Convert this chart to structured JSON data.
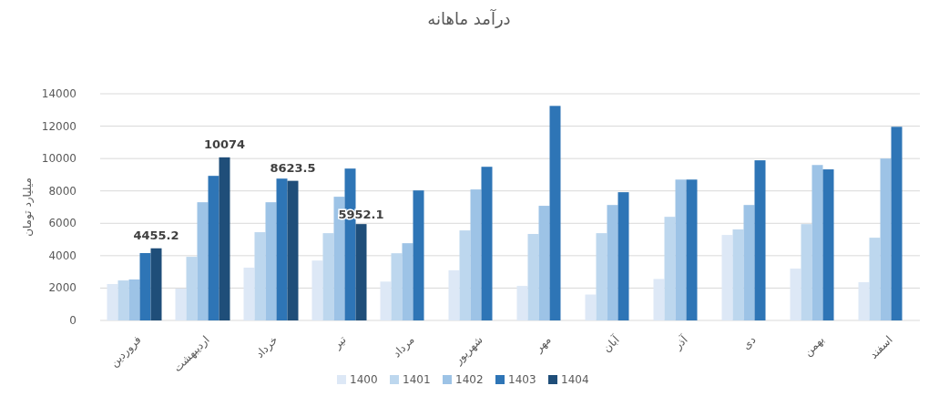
{
  "chart_data": {
    "type": "bar",
    "title": "درآمد ماهانه",
    "ylabel": "میلیارد تومان",
    "categories": [
      "فروردین",
      "اردیبهشت",
      "خرداد",
      "تیر",
      "مرداد",
      "شهریور",
      "مهر",
      "آبان",
      "آذر",
      "دی",
      "بهمن",
      "اسفند"
    ],
    "series": [
      {
        "name": "1400",
        "color": "#dde8f6",
        "values": [
          2250,
          1970,
          3260,
          3700,
          2400,
          3100,
          2130,
          1600,
          2560,
          5280,
          3200,
          2360
        ]
      },
      {
        "name": "1401",
        "color": "#bdd7ee",
        "values": [
          2470,
          3930,
          5450,
          5390,
          4150,
          5560,
          5340,
          5390,
          6400,
          5620,
          5950,
          5110
        ]
      },
      {
        "name": "1402",
        "color": "#9dc3e6",
        "values": [
          2530,
          7300,
          7300,
          7640,
          4770,
          8090,
          7080,
          7130,
          8700,
          7130,
          9600,
          10000
        ]
      },
      {
        "name": "1403",
        "color": "#2e75b6",
        "values": [
          4160,
          8930,
          8760,
          9380,
          8030,
          9490,
          13250,
          7920,
          8700,
          9890,
          9330,
          11960
        ]
      },
      {
        "name": "1404",
        "color": "#1f4e79",
        "values": [
          4455.2,
          10074,
          8623.5,
          5952.1,
          null,
          null,
          null,
          null,
          null,
          null,
          null,
          null
        ],
        "value_labels": [
          "4455.2",
          "10074",
          "8623.5",
          "5952.1",
          null,
          null,
          null,
          null,
          null,
          null,
          null,
          null
        ]
      }
    ],
    "ylim": [
      0,
      14000
    ],
    "yticks": [
      0,
      2000,
      4000,
      6000,
      8000,
      10000,
      12000,
      14000
    ],
    "grid": "y",
    "legend": "bottom"
  }
}
